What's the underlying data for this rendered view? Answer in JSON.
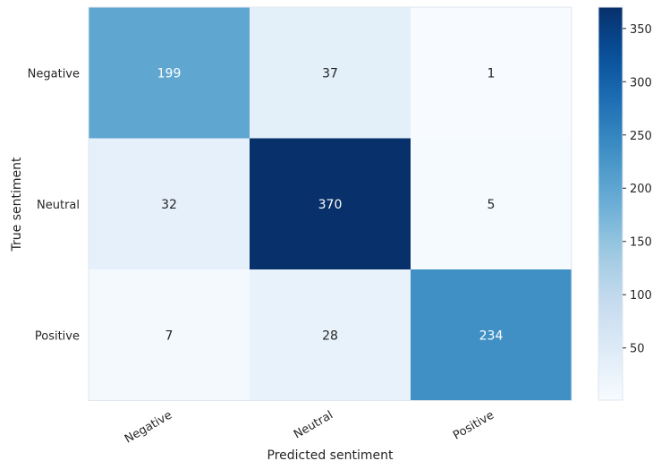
{
  "chart_data": {
    "type": "heatmap",
    "title": "",
    "xlabel": "Predicted sentiment",
    "ylabel": "True sentiment",
    "x_categories": [
      "Negative",
      "Neutral",
      "Positive"
    ],
    "y_categories": [
      "Negative",
      "Neutral",
      "Positive"
    ],
    "values": [
      [
        199,
        37,
        1
      ],
      [
        32,
        370,
        5
      ],
      [
        7,
        28,
        234
      ]
    ],
    "colormap": "Blues",
    "vmin": 1,
    "vmax": 370,
    "colorbar_ticks": [
      50,
      100,
      150,
      200,
      250,
      300,
      350
    ],
    "text_color_dark": "#262626",
    "text_color_light": "#ffffff"
  }
}
